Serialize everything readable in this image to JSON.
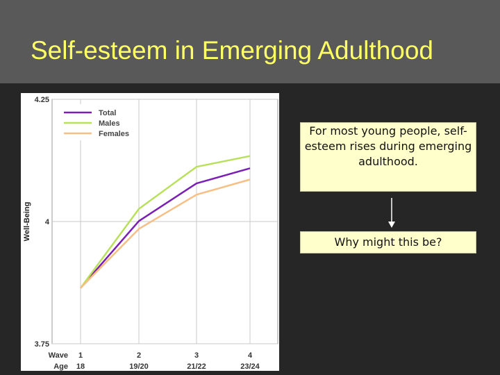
{
  "slide": {
    "title": "Self-esteem in Emerging Adulthood",
    "callout_main": "For most young people, self-esteem rises during emerging adulthood.",
    "callout_question": "Why might this be?"
  },
  "colors": {
    "title": "#ffff66",
    "total": "#7a1fb4",
    "males": "#b8e05c",
    "females": "#f7bf85",
    "callout_bg": "#ffffcc"
  },
  "chart_data": {
    "type": "line",
    "ylabel": "Well-Being",
    "ylim": [
      3.75,
      4.25
    ],
    "yticks": [
      "3.75",
      "4",
      "4.25"
    ],
    "x_row_labels": {
      "wave": "Wave",
      "age": "Age"
    },
    "x": [
      "1",
      "2",
      "3",
      "4"
    ],
    "ages": [
      "18",
      "19/20",
      "21/22",
      "23/24"
    ],
    "grid": true,
    "legend_position": "top-left",
    "series": [
      {
        "name": "Total",
        "color": "#7a1fb4",
        "values": [
          3.864,
          4.001,
          4.078,
          4.109
        ]
      },
      {
        "name": "Males",
        "color": "#b8e05c",
        "values": [
          3.864,
          4.026,
          4.112,
          4.134
        ]
      },
      {
        "name": "Females",
        "color": "#f7bf85",
        "values": [
          3.864,
          3.985,
          4.055,
          4.086
        ]
      }
    ]
  }
}
